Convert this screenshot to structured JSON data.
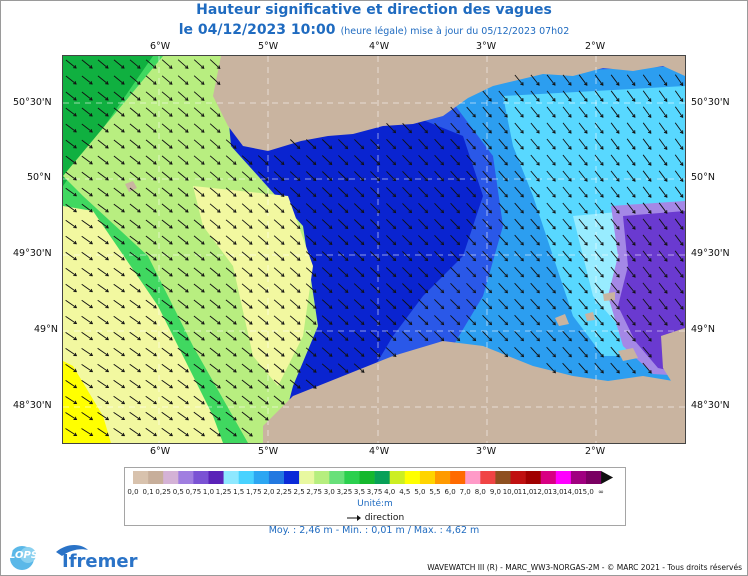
{
  "header": {
    "title": "Hauteur significative et direction des vagues",
    "date": "le 04/12/2023 10:00",
    "update": "(heure légale) mise à jour du 05/12/2023 07h02"
  },
  "axes": {
    "lon_top": [
      "6°W",
      "5°W",
      "4°W",
      "3°W",
      "2°W"
    ],
    "lon_bottom": [
      "6°W",
      "5°W",
      "4°W",
      "3°W",
      "2°W"
    ],
    "lat_left": [
      "50°30'N",
      "50°N",
      "49°30'N",
      "49°N",
      "48°30'N"
    ],
    "lat_right": [
      "50°30'N",
      "50°N",
      "49°30'N",
      "49°N",
      "48°30'N"
    ]
  },
  "legend": {
    "labels": [
      "0,0",
      "0,1",
      "0,25",
      "0,5",
      "0,75",
      "1,0",
      "1,25",
      "1,5",
      "1,75",
      "2,0",
      "2,25",
      "2,5",
      "2,75",
      "3,0",
      "3,25",
      "3,5",
      "3,75",
      "4,0",
      "4,5",
      "5,0",
      "5,5",
      "6,0",
      "7,0",
      "8,0",
      "9,0",
      "10,0",
      "11,0",
      "12,0",
      "13,0",
      "14,0",
      "15,0",
      "∞"
    ],
    "colors": [
      "#d8c2ad",
      "#c7ae9a",
      "#d4b2d6",
      "#a07ee0",
      "#7a52d4",
      "#5a22b8",
      "#8ee8ff",
      "#48d2ff",
      "#2ca6f2",
      "#2278e0",
      "#0a2ad8",
      "#e8f8a0",
      "#b6ee7e",
      "#68e07a",
      "#2ad04e",
      "#15b82e",
      "#08a058",
      "#ccee22",
      "#ffff00",
      "#ffd400",
      "#ff9a00",
      "#ff6a00",
      "#ff9ac8",
      "#f04444",
      "#8e5020",
      "#c01010",
      "#a00000",
      "#d80082",
      "#ff00ff",
      "#a00080",
      "#7a0062"
    ],
    "unit": "Unité:m",
    "direction": "direction"
  },
  "stats": "Moy. : 2,46 m   -   Min. : 0,01 m / Max. : 4,62 m",
  "logos": {
    "lops": "LOPS",
    "ifremer": "Ifremer"
  },
  "credit": "WAVEWATCH III (R) - MARC_WW3-NORGAS-2M - © MARC 2021 - Tous droits réservés",
  "map_colors": {
    "land": "#c9b4a0",
    "coast_white": "#ffffff",
    "yellow": "#ffff00",
    "pale_yellow": "#f2f8a0",
    "light_green": "#b8ee80",
    "green": "#40d860",
    "dark_green": "#10b040",
    "navy": "#0a24d0",
    "blue": "#2a58e8",
    "mid_blue": "#2c9ef0",
    "cyan": "#58d8ff",
    "light_cyan": "#98ecff",
    "purple": "#6a3ad0",
    "light_purple": "#a488e6"
  }
}
